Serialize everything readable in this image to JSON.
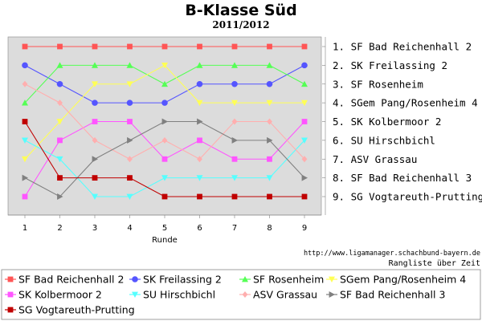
{
  "chart_data": {
    "type": "line",
    "title": "B-Klasse Süd",
    "subtitle": "2011/2012",
    "xlabel": "Runde",
    "ylabel": "",
    "x": [
      1,
      2,
      3,
      4,
      5,
      6,
      7,
      8,
      9
    ],
    "ylim": [
      1,
      9
    ],
    "y_inverted": true,
    "grid": false,
    "legend_position": "bottom",
    "source": "http://www.ligamanager.schachbund-bayern.de",
    "note": "Rangliste über Zeit",
    "ranking": [
      "1. SF Bad Reichenhall 2",
      "2. SK Freilassing 2",
      "3. SF Rosenheim",
      "4. SGem Pang/Rosenheim 4",
      "5. SK Kolbermoor 2",
      "6. SU Hirschbichl",
      "7. ASV Grassau",
      "8. SF Bad Reichenhall 3",
      "9. SG Vogtareuth-Prutting"
    ],
    "series": [
      {
        "name": "SF Bad Reichenhall 2",
        "color": "#ff5555",
        "marker": "square",
        "values": [
          1,
          1,
          1,
          1,
          1,
          1,
          1,
          1,
          1
        ]
      },
      {
        "name": "SK Freilassing 2",
        "color": "#5555ff",
        "marker": "circle",
        "values": [
          2,
          3,
          4,
          4,
          4,
          3,
          3,
          3,
          2
        ]
      },
      {
        "name": "SF Rosenheim",
        "color": "#55ff55",
        "marker": "triangle-up",
        "values": [
          4,
          2,
          2,
          2,
          3,
          2,
          2,
          2,
          3
        ]
      },
      {
        "name": "SGem Pang/Rosenheim 4",
        "color": "#ffff55",
        "marker": "triangle-down",
        "values": [
          7,
          5,
          3,
          3,
          2,
          4,
          4,
          4,
          4
        ]
      },
      {
        "name": "SK Kolbermoor 2",
        "color": "#ff55ff",
        "marker": "square",
        "values": [
          9,
          6,
          5,
          5,
          7,
          6,
          7,
          7,
          5
        ]
      },
      {
        "name": "SU Hirschbichl",
        "color": "#55ffff",
        "marker": "triangle-down",
        "values": [
          6,
          7,
          9,
          9,
          8,
          8,
          8,
          8,
          6
        ]
      },
      {
        "name": "ASV Grassau",
        "color": "#ffafaf",
        "marker": "diamond",
        "values": [
          3,
          4,
          6,
          7,
          6,
          7,
          5,
          5,
          7
        ]
      },
      {
        "name": "SF Bad Reichenhall 3",
        "color": "#808080",
        "marker": "triangle-right",
        "values": [
          8,
          9,
          7,
          6,
          5,
          5,
          6,
          6,
          8
        ]
      },
      {
        "name": "SG Vogtareuth-Prutting",
        "color": "#c00000",
        "marker": "square",
        "values": [
          5,
          8,
          8,
          8,
          9,
          9,
          9,
          9,
          9
        ]
      }
    ]
  }
}
